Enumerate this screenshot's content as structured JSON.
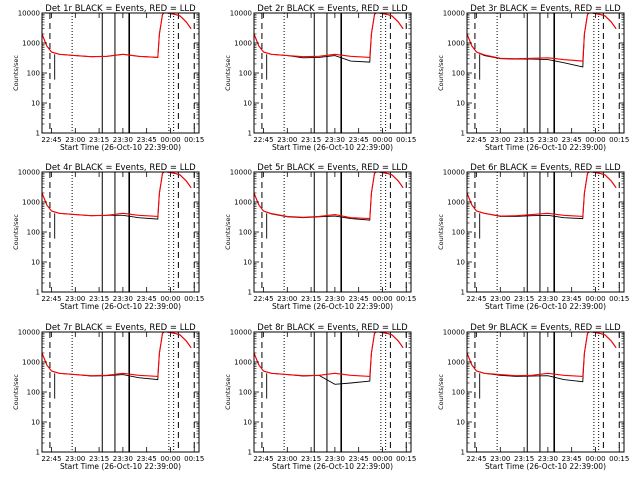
{
  "xlabel": "Start Time (26-Oct-10 22:39:00)",
  "ylabel": "Counts/sec",
  "xtick_labels": [
    "22:45",
    "23:00",
    "23:15",
    "23:30",
    "23:45",
    "00:00",
    "00:15"
  ],
  "ytick_labels": [
    "1",
    "10",
    "100",
    "1000",
    "10000"
  ],
  "colors": {
    "events": "#000000",
    "lld": "#ff0000"
  },
  "chart_data": [
    {
      "type": "line",
      "title": "Det 1r BLACK = Events, RED = LLD",
      "x": [
        "22:39",
        "22:42",
        "22:45",
        "22:50",
        "23:00",
        "23:10",
        "23:20",
        "23:30",
        "23:40",
        "23:52",
        "23:53",
        "23:55",
        "23:56",
        "23:58",
        "00:00",
        "00:03",
        "00:06",
        "00:10",
        "00:13"
      ],
      "ylim": [
        1,
        10000
      ],
      "yscale": "log",
      "series": [
        {
          "name": "BLACK = Events",
          "values": [
            2000,
            800,
            500,
            420,
            380,
            350,
            360,
            420,
            360,
            330,
            2000,
            9000,
            10000,
            10000,
            9500,
            9000,
            8000,
            5000,
            3000
          ]
        },
        {
          "name": "RED = LLD",
          "values": [
            2000,
            800,
            500,
            420,
            380,
            350,
            360,
            420,
            360,
            330,
            2000,
            9000,
            10000,
            10000,
            9500,
            9000,
            8000,
            5000,
            3000
          ]
        }
      ]
    },
    {
      "type": "line",
      "title": "Det 2r BLACK = Events, RED = LLD",
      "x": [
        "22:39",
        "22:42",
        "22:45",
        "22:50",
        "23:00",
        "23:10",
        "23:20",
        "23:30",
        "23:40",
        "23:52",
        "23:53",
        "23:55",
        "23:56",
        "23:58",
        "00:00",
        "00:03",
        "00:06",
        "00:10",
        "00:13"
      ],
      "ylim": [
        1,
        10000
      ],
      "yscale": "log",
      "series": [
        {
          "name": "BLACK = Events",
          "values": [
            2000,
            800,
            500,
            420,
            380,
            320,
            330,
            380,
            250,
            230,
            2000,
            9000,
            10000,
            10000,
            9500,
            9000,
            8000,
            5000,
            3000
          ]
        },
        {
          "name": "RED = LLD",
          "values": [
            2000,
            800,
            500,
            420,
            380,
            350,
            360,
            420,
            360,
            330,
            2000,
            9000,
            10000,
            10000,
            9500,
            9000,
            8000,
            5000,
            3000
          ]
        }
      ]
    },
    {
      "type": "line",
      "title": "Det 3r BLACK = Events, RED = LLD",
      "x": [
        "22:39",
        "22:42",
        "22:45",
        "22:50",
        "23:00",
        "23:10",
        "23:20",
        "23:30",
        "23:40",
        "23:52",
        "23:53",
        "23:55",
        "23:56",
        "23:58",
        "00:00",
        "00:03",
        "00:06",
        "00:10",
        "00:13"
      ],
      "ylim": [
        1,
        10000
      ],
      "yscale": "log",
      "series": [
        {
          "name": "BLACK = Events",
          "values": [
            2000,
            800,
            500,
            380,
            300,
            290,
            290,
            280,
            220,
            160,
            2000,
            9000,
            10000,
            10000,
            9500,
            9000,
            8000,
            5000,
            3000
          ]
        },
        {
          "name": "RED = LLD",
          "values": [
            2000,
            800,
            500,
            400,
            310,
            300,
            310,
            320,
            280,
            250,
            2000,
            9000,
            10000,
            10000,
            9500,
            9000,
            8000,
            5000,
            3000
          ]
        }
      ]
    },
    {
      "type": "line",
      "title": "Det 4r BLACK = Events, RED = LLD",
      "x": [
        "22:39",
        "22:42",
        "22:45",
        "22:50",
        "23:00",
        "23:10",
        "23:20",
        "23:30",
        "23:40",
        "23:52",
        "23:53",
        "23:55",
        "23:56",
        "23:58",
        "00:00",
        "00:03",
        "00:06",
        "00:10",
        "00:13"
      ],
      "ylim": [
        1,
        10000
      ],
      "yscale": "log",
      "series": [
        {
          "name": "BLACK = Events",
          "values": [
            2000,
            800,
            500,
            420,
            380,
            350,
            360,
            360,
            300,
            270,
            2000,
            9000,
            10000,
            10000,
            9500,
            9000,
            8000,
            5000,
            3000
          ]
        },
        {
          "name": "RED = LLD",
          "values": [
            2000,
            800,
            500,
            420,
            380,
            350,
            360,
            420,
            360,
            330,
            2000,
            9000,
            10000,
            10000,
            9500,
            9000,
            8000,
            5000,
            3000
          ]
        }
      ]
    },
    {
      "type": "line",
      "title": "Det 5r BLACK = Events, RED = LLD",
      "x": [
        "22:39",
        "22:42",
        "22:45",
        "22:50",
        "23:00",
        "23:10",
        "23:20",
        "23:30",
        "23:40",
        "23:52",
        "23:53",
        "23:55",
        "23:56",
        "23:58",
        "00:00",
        "00:03",
        "00:06",
        "00:10",
        "00:13"
      ],
      "ylim": [
        1,
        10000
      ],
      "yscale": "log",
      "series": [
        {
          "name": "BLACK = Events",
          "values": [
            2000,
            800,
            500,
            400,
            320,
            300,
            320,
            340,
            280,
            250,
            2000,
            9000,
            10000,
            10000,
            9500,
            9000,
            8000,
            5000,
            3000
          ]
        },
        {
          "name": "RED = LLD",
          "values": [
            2000,
            800,
            500,
            410,
            330,
            310,
            330,
            380,
            300,
            280,
            2000,
            9000,
            10000,
            10000,
            9500,
            9000,
            8000,
            5000,
            3000
          ]
        }
      ]
    },
    {
      "type": "line",
      "title": "Det 6r BLACK = Events, RED = LLD",
      "x": [
        "22:39",
        "22:42",
        "22:45",
        "22:50",
        "23:00",
        "23:10",
        "23:20",
        "23:30",
        "23:40",
        "23:52",
        "23:53",
        "23:55",
        "23:56",
        "23:58",
        "00:00",
        "00:03",
        "00:06",
        "00:10",
        "00:13"
      ],
      "ylim": [
        1,
        10000
      ],
      "yscale": "log",
      "series": [
        {
          "name": "BLACK = Events",
          "values": [
            2000,
            800,
            500,
            420,
            330,
            330,
            350,
            360,
            300,
            280,
            2000,
            9000,
            10000,
            10000,
            9500,
            9000,
            8000,
            5000,
            3000
          ]
        },
        {
          "name": "RED = LLD",
          "values": [
            2000,
            800,
            500,
            420,
            340,
            350,
            380,
            420,
            360,
            330,
            2000,
            9000,
            10000,
            10000,
            9500,
            9000,
            8000,
            5000,
            3000
          ]
        }
      ]
    },
    {
      "type": "line",
      "title": "Det 7r BLACK = Events, RED = LLD",
      "x": [
        "22:39",
        "22:42",
        "22:45",
        "22:50",
        "23:00",
        "23:10",
        "23:20",
        "23:30",
        "23:40",
        "23:52",
        "23:53",
        "23:55",
        "23:56",
        "23:58",
        "00:00",
        "00:03",
        "00:06",
        "00:10",
        "00:13"
      ],
      "ylim": [
        1,
        10000
      ],
      "yscale": "log",
      "series": [
        {
          "name": "BLACK = Events",
          "values": [
            2000,
            800,
            500,
            420,
            380,
            340,
            350,
            380,
            300,
            260,
            2000,
            9000,
            10000,
            10000,
            9500,
            9000,
            8000,
            5000,
            3000
          ]
        },
        {
          "name": "RED = LLD",
          "values": [
            2000,
            800,
            500,
            420,
            380,
            350,
            360,
            420,
            360,
            330,
            2000,
            9000,
            10000,
            10000,
            9500,
            9000,
            8000,
            5000,
            3000
          ]
        }
      ]
    },
    {
      "type": "line",
      "title": "Det 8r BLACK = Events, RED = LLD",
      "x": [
        "22:39",
        "22:42",
        "22:45",
        "22:50",
        "23:00",
        "23:10",
        "23:20",
        "23:30",
        "23:40",
        "23:52",
        "23:53",
        "23:55",
        "23:56",
        "23:58",
        "00:00",
        "00:03",
        "00:06",
        "00:10",
        "00:13"
      ],
      "ylim": [
        1,
        10000
      ],
      "yscale": "log",
      "series": [
        {
          "name": "BLACK = Events",
          "values": [
            2000,
            800,
            500,
            420,
            380,
            340,
            360,
            180,
            200,
            230,
            2000,
            9000,
            10000,
            10000,
            9500,
            9000,
            8000,
            5000,
            3000
          ]
        },
        {
          "name": "RED = LLD",
          "values": [
            2000,
            800,
            500,
            420,
            380,
            350,
            360,
            420,
            360,
            330,
            2000,
            9000,
            10000,
            10000,
            9500,
            9000,
            8000,
            5000,
            3000
          ]
        }
      ]
    },
    {
      "type": "line",
      "title": "Det 9r BLACK = Events, RED = LLD",
      "x": [
        "22:39",
        "22:42",
        "22:45",
        "22:50",
        "23:00",
        "23:10",
        "23:20",
        "23:30",
        "23:40",
        "23:52",
        "23:53",
        "23:55",
        "23:56",
        "23:58",
        "00:00",
        "00:03",
        "00:06",
        "00:10",
        "00:13"
      ],
      "ylim": [
        1,
        10000
      ],
      "yscale": "log",
      "series": [
        {
          "name": "BLACK = Events",
          "values": [
            2000,
            800,
            500,
            420,
            360,
            330,
            340,
            350,
            260,
            220,
            2000,
            9000,
            10000,
            10000,
            9500,
            9000,
            8000,
            5000,
            3000
          ]
        },
        {
          "name": "RED = LLD",
          "values": [
            2000,
            800,
            500,
            420,
            380,
            350,
            360,
            420,
            360,
            330,
            2000,
            9000,
            10000,
            10000,
            9500,
            9000,
            8000,
            5000,
            3000
          ]
        }
      ]
    }
  ]
}
